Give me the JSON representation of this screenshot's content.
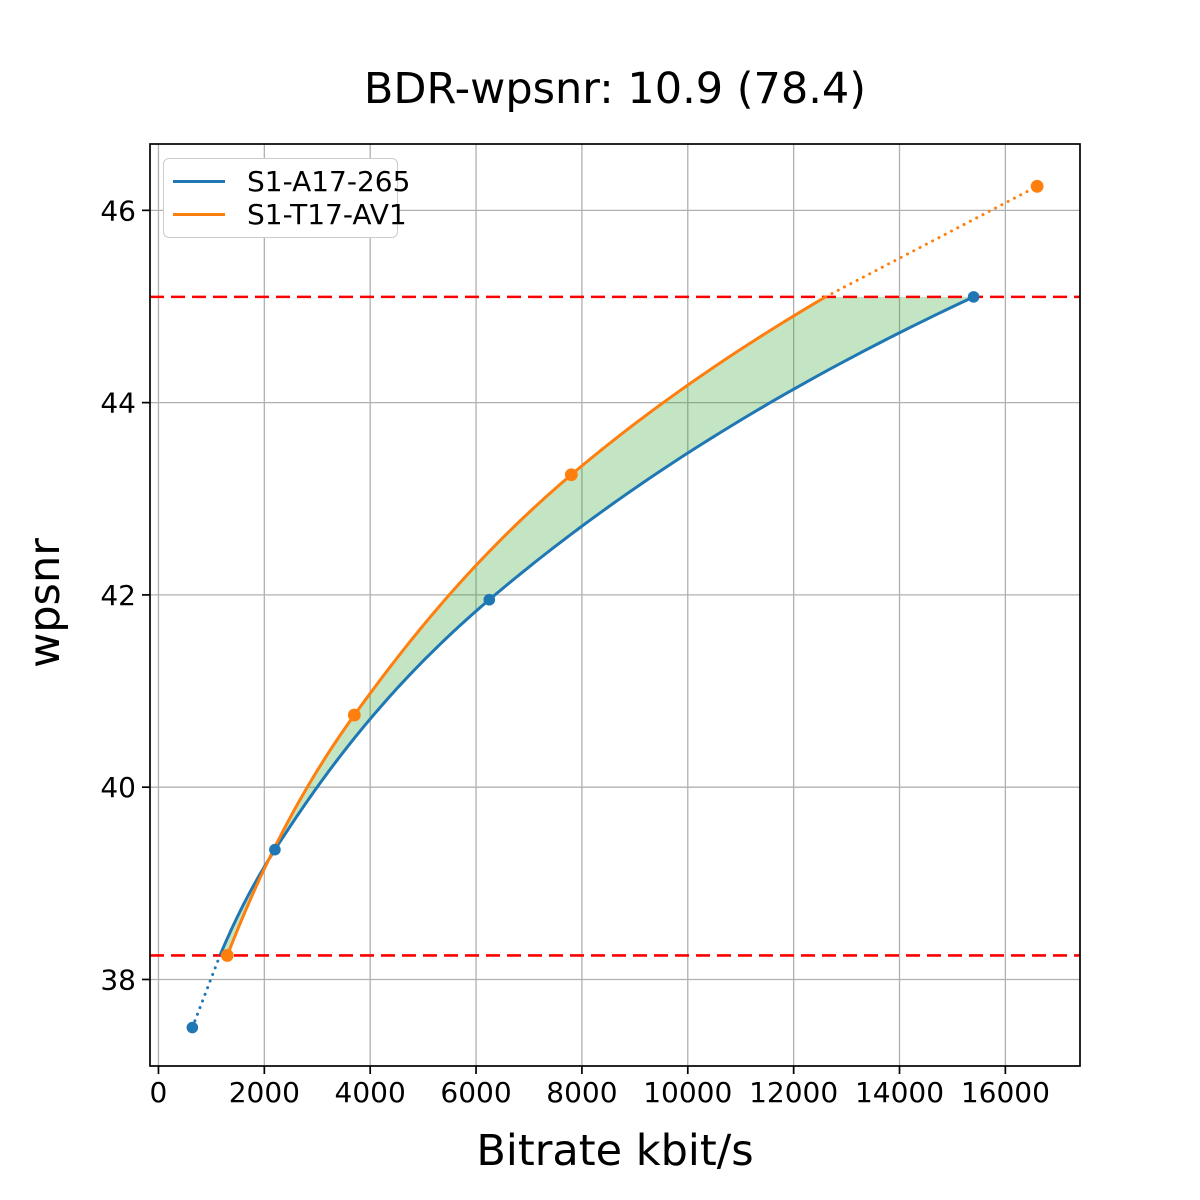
{
  "title": "BDR-wpsnr: 10.9 (78.4)",
  "axes": {
    "xlabel": "Bitrate kbit/s",
    "ylabel": "wpsnr"
  },
  "legend": {
    "items": [
      {
        "label": "S1-A17-265",
        "color": "#1f77b4"
      },
      {
        "label": "S1-T17-AV1",
        "color": "#ff7f0e"
      }
    ]
  },
  "chart_data": {
    "type": "line",
    "title": "BDR-wpsnr: 10.9 (78.4)",
    "xlabel": "Bitrate kbit/s",
    "ylabel": "wpsnr",
    "bdr_value": 10.9,
    "overlap_percent": 78.4,
    "series": [
      {
        "name": "S1-A17-265",
        "color": "#1f77b4",
        "x": [
          640,
          2200,
          6250,
          15400
        ],
        "y": [
          37.5,
          39.35,
          41.95,
          45.1
        ]
      },
      {
        "name": "S1-T17-AV1",
        "color": "#ff7f0e",
        "x": [
          1300,
          3700,
          7800,
          16600
        ],
        "y": [
          38.25,
          40.75,
          43.25,
          46.25
        ]
      }
    ],
    "overlap_lines": {
      "upper_y": 45.1,
      "lower_y": 38.25,
      "color": "#ff0000",
      "style": "dashed"
    },
    "fill_between": {
      "color": "#2ca02c",
      "opacity": 0.28
    },
    "x_ticks": [
      0,
      2000,
      4000,
      6000,
      8000,
      10000,
      12000,
      14000,
      16000
    ],
    "y_ticks": [
      38,
      40,
      42,
      44,
      46
    ],
    "xlim": [
      -160,
      17410
    ],
    "ylim": [
      37.1,
      46.69
    ],
    "grid": true,
    "grid_color": "#b0b0b0",
    "legend_position": "upper left"
  }
}
